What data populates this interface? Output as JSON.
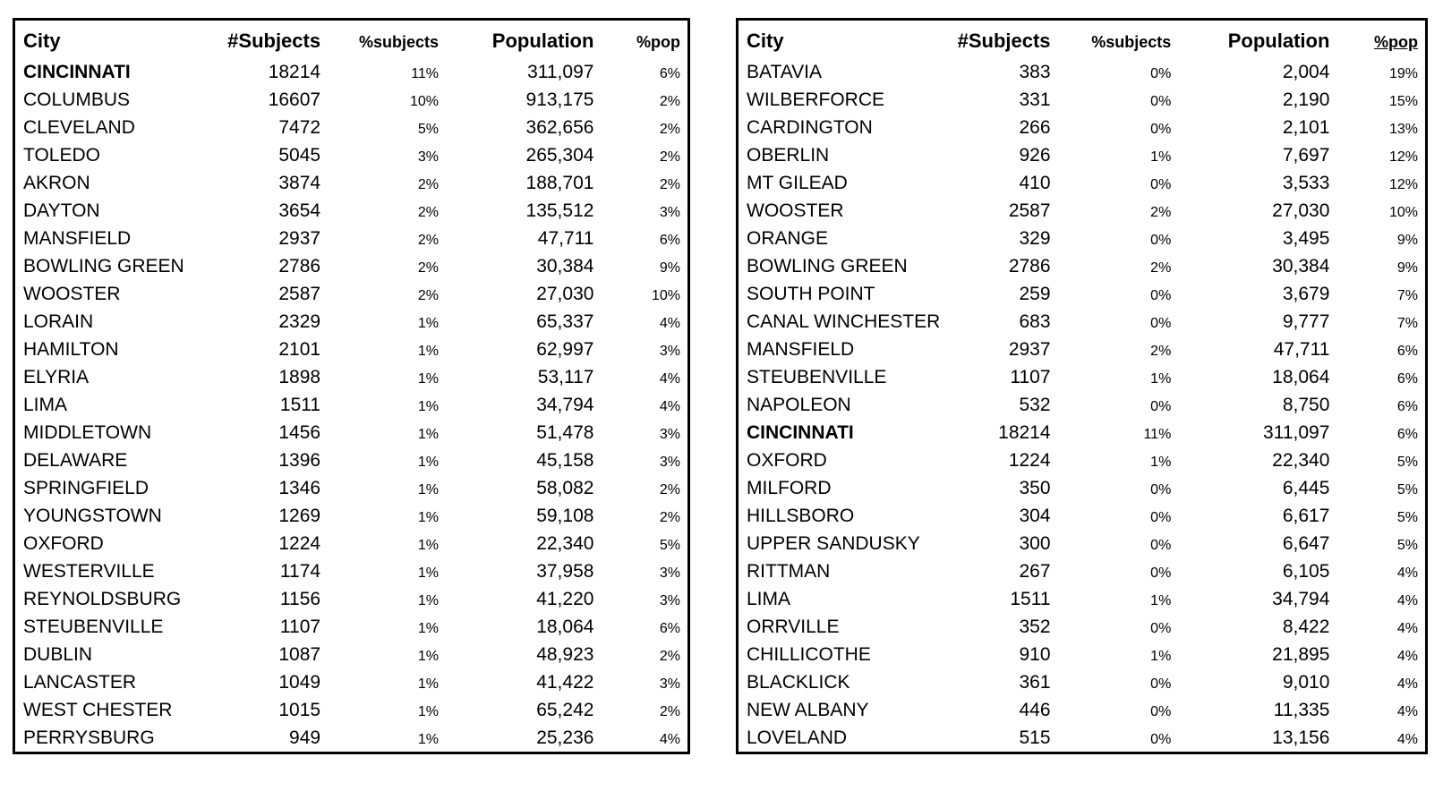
{
  "page": {
    "background": "#ffffff"
  },
  "colors": {
    "text": "#000000",
    "border": "#000000"
  },
  "tables": [
    {
      "name": "cities-by-subjects",
      "headers": [
        {
          "label": "City",
          "underline": false
        },
        {
          "label": "#Subjects",
          "underline": false
        },
        {
          "label": "%subjects",
          "underline": false
        },
        {
          "label": "Population",
          "underline": false
        },
        {
          "label": "%pop",
          "underline": false
        }
      ],
      "rows": [
        {
          "city": "CINCINNATI",
          "subjects": "18214",
          "pct_subjects": "11%",
          "population": "311,097",
          "pct_pop": "6%",
          "bold": true
        },
        {
          "city": "COLUMBUS",
          "subjects": "16607",
          "pct_subjects": "10%",
          "population": "913,175",
          "pct_pop": "2%",
          "bold": false
        },
        {
          "city": "CLEVELAND",
          "subjects": "7472",
          "pct_subjects": "5%",
          "population": "362,656",
          "pct_pop": "2%",
          "bold": false
        },
        {
          "city": "TOLEDO",
          "subjects": "5045",
          "pct_subjects": "3%",
          "population": "265,304",
          "pct_pop": "2%",
          "bold": false
        },
        {
          "city": "AKRON",
          "subjects": "3874",
          "pct_subjects": "2%",
          "population": "188,701",
          "pct_pop": "2%",
          "bold": false
        },
        {
          "city": "DAYTON",
          "subjects": "3654",
          "pct_subjects": "2%",
          "population": "135,512",
          "pct_pop": "3%",
          "bold": false
        },
        {
          "city": "MANSFIELD",
          "subjects": "2937",
          "pct_subjects": "2%",
          "population": "47,711",
          "pct_pop": "6%",
          "bold": false
        },
        {
          "city": "BOWLING GREEN",
          "subjects": "2786",
          "pct_subjects": "2%",
          "population": "30,384",
          "pct_pop": "9%",
          "bold": false
        },
        {
          "city": "WOOSTER",
          "subjects": "2587",
          "pct_subjects": "2%",
          "population": "27,030",
          "pct_pop": "10%",
          "bold": false
        },
        {
          "city": "LORAIN",
          "subjects": "2329",
          "pct_subjects": "1%",
          "population": "65,337",
          "pct_pop": "4%",
          "bold": false
        },
        {
          "city": "HAMILTON",
          "subjects": "2101",
          "pct_subjects": "1%",
          "population": "62,997",
          "pct_pop": "3%",
          "bold": false
        },
        {
          "city": "ELYRIA",
          "subjects": "1898",
          "pct_subjects": "1%",
          "population": "53,117",
          "pct_pop": "4%",
          "bold": false
        },
        {
          "city": "LIMA",
          "subjects": "1511",
          "pct_subjects": "1%",
          "population": "34,794",
          "pct_pop": "4%",
          "bold": false
        },
        {
          "city": "MIDDLETOWN",
          "subjects": "1456",
          "pct_subjects": "1%",
          "population": "51,478",
          "pct_pop": "3%",
          "bold": false
        },
        {
          "city": "DELAWARE",
          "subjects": "1396",
          "pct_subjects": "1%",
          "population": "45,158",
          "pct_pop": "3%",
          "bold": false
        },
        {
          "city": "SPRINGFIELD",
          "subjects": "1346",
          "pct_subjects": "1%",
          "population": "58,082",
          "pct_pop": "2%",
          "bold": false
        },
        {
          "city": "YOUNGSTOWN",
          "subjects": "1269",
          "pct_subjects": "1%",
          "population": "59,108",
          "pct_pop": "2%",
          "bold": false
        },
        {
          "city": "OXFORD",
          "subjects": "1224",
          "pct_subjects": "1%",
          "population": "22,340",
          "pct_pop": "5%",
          "bold": false
        },
        {
          "city": "WESTERVILLE",
          "subjects": "1174",
          "pct_subjects": "1%",
          "population": "37,958",
          "pct_pop": "3%",
          "bold": false
        },
        {
          "city": "REYNOLDSBURG",
          "subjects": "1156",
          "pct_subjects": "1%",
          "population": "41,220",
          "pct_pop": "3%",
          "bold": false
        },
        {
          "city": "STEUBENVILLE",
          "subjects": "1107",
          "pct_subjects": "1%",
          "population": "18,064",
          "pct_pop": "6%",
          "bold": false
        },
        {
          "city": "DUBLIN",
          "subjects": "1087",
          "pct_subjects": "1%",
          "population": "48,923",
          "pct_pop": "2%",
          "bold": false
        },
        {
          "city": "LANCASTER",
          "subjects": "1049",
          "pct_subjects": "1%",
          "population": "41,422",
          "pct_pop": "3%",
          "bold": false
        },
        {
          "city": "WEST CHESTER",
          "subjects": "1015",
          "pct_subjects": "1%",
          "population": "65,242",
          "pct_pop": "2%",
          "bold": false
        },
        {
          "city": "PERRYSBURG",
          "subjects": "949",
          "pct_subjects": "1%",
          "population": "25,236",
          "pct_pop": "4%",
          "bold": false
        }
      ]
    },
    {
      "name": "cities-by-pop-percent",
      "headers": [
        {
          "label": "City",
          "underline": false
        },
        {
          "label": "#Subjects",
          "underline": false
        },
        {
          "label": "%subjects",
          "underline": false
        },
        {
          "label": "Population",
          "underline": false
        },
        {
          "label": "%pop",
          "underline": true
        }
      ],
      "rows": [
        {
          "city": "BATAVIA",
          "subjects": "383",
          "pct_subjects": "0%",
          "population": "2,004",
          "pct_pop": "19%",
          "bold": false
        },
        {
          "city": "WILBERFORCE",
          "subjects": "331",
          "pct_subjects": "0%",
          "population": "2,190",
          "pct_pop": "15%",
          "bold": false
        },
        {
          "city": "CARDINGTON",
          "subjects": "266",
          "pct_subjects": "0%",
          "population": "2,101",
          "pct_pop": "13%",
          "bold": false
        },
        {
          "city": "OBERLIN",
          "subjects": "926",
          "pct_subjects": "1%",
          "population": "7,697",
          "pct_pop": "12%",
          "bold": false
        },
        {
          "city": "MT GILEAD",
          "subjects": "410",
          "pct_subjects": "0%",
          "population": "3,533",
          "pct_pop": "12%",
          "bold": false
        },
        {
          "city": "WOOSTER",
          "subjects": "2587",
          "pct_subjects": "2%",
          "population": "27,030",
          "pct_pop": "10%",
          "bold": false
        },
        {
          "city": "ORANGE",
          "subjects": "329",
          "pct_subjects": "0%",
          "population": "3,495",
          "pct_pop": "9%",
          "bold": false
        },
        {
          "city": "BOWLING GREEN",
          "subjects": "2786",
          "pct_subjects": "2%",
          "population": "30,384",
          "pct_pop": "9%",
          "bold": false
        },
        {
          "city": "SOUTH POINT",
          "subjects": "259",
          "pct_subjects": "0%",
          "population": "3,679",
          "pct_pop": "7%",
          "bold": false
        },
        {
          "city": "CANAL WINCHESTER",
          "subjects": "683",
          "pct_subjects": "0%",
          "population": "9,777",
          "pct_pop": "7%",
          "bold": false
        },
        {
          "city": "MANSFIELD",
          "subjects": "2937",
          "pct_subjects": "2%",
          "population": "47,711",
          "pct_pop": "6%",
          "bold": false
        },
        {
          "city": "STEUBENVILLE",
          "subjects": "1107",
          "pct_subjects": "1%",
          "population": "18,064",
          "pct_pop": "6%",
          "bold": false
        },
        {
          "city": "NAPOLEON",
          "subjects": "532",
          "pct_subjects": "0%",
          "population": "8,750",
          "pct_pop": "6%",
          "bold": false
        },
        {
          "city": "CINCINNATI",
          "subjects": "18214",
          "pct_subjects": "11%",
          "population": "311,097",
          "pct_pop": "6%",
          "bold": true
        },
        {
          "city": "OXFORD",
          "subjects": "1224",
          "pct_subjects": "1%",
          "population": "22,340",
          "pct_pop": "5%",
          "bold": false
        },
        {
          "city": "MILFORD",
          "subjects": "350",
          "pct_subjects": "0%",
          "population": "6,445",
          "pct_pop": "5%",
          "bold": false
        },
        {
          "city": "HILLSBORO",
          "subjects": "304",
          "pct_subjects": "0%",
          "population": "6,617",
          "pct_pop": "5%",
          "bold": false
        },
        {
          "city": "UPPER SANDUSKY",
          "subjects": "300",
          "pct_subjects": "0%",
          "population": "6,647",
          "pct_pop": "5%",
          "bold": false
        },
        {
          "city": "RITTMAN",
          "subjects": "267",
          "pct_subjects": "0%",
          "population": "6,105",
          "pct_pop": "4%",
          "bold": false
        },
        {
          "city": "LIMA",
          "subjects": "1511",
          "pct_subjects": "1%",
          "population": "34,794",
          "pct_pop": "4%",
          "bold": false
        },
        {
          "city": "ORRVILLE",
          "subjects": "352",
          "pct_subjects": "0%",
          "population": "8,422",
          "pct_pop": "4%",
          "bold": false
        },
        {
          "city": "CHILLICOTHE",
          "subjects": "910",
          "pct_subjects": "1%",
          "population": "21,895",
          "pct_pop": "4%",
          "bold": false
        },
        {
          "city": "BLACKLICK",
          "subjects": "361",
          "pct_subjects": "0%",
          "population": "9,010",
          "pct_pop": "4%",
          "bold": false
        },
        {
          "city": "NEW ALBANY",
          "subjects": "446",
          "pct_subjects": "0%",
          "population": "11,335",
          "pct_pop": "4%",
          "bold": false
        },
        {
          "city": "LOVELAND",
          "subjects": "515",
          "pct_subjects": "0%",
          "population": "13,156",
          "pct_pop": "4%",
          "bold": false
        }
      ]
    }
  ]
}
